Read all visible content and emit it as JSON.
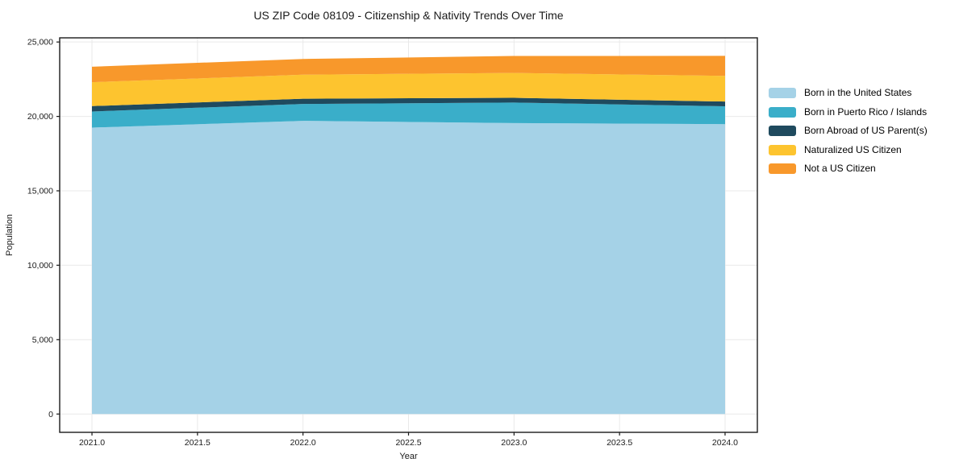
{
  "chart_data": {
    "type": "area",
    "stacked": true,
    "title": "US ZIP Code 08109 - Citizenship & Nativity Trends Over Time",
    "xlabel": "Year",
    "ylabel": "Population",
    "x": [
      2021,
      2022,
      2023,
      2024
    ],
    "series": [
      {
        "name": "Born in the United States",
        "color": "#a5d2e7",
        "values": [
          19250,
          19700,
          19550,
          19480
        ]
      },
      {
        "name": "Born in Puerto Rico / Islands",
        "color": "#3aaec9",
        "values": [
          1080,
          1140,
          1380,
          1200
        ]
      },
      {
        "name": "Born Abroad of US Parent(s)",
        "color": "#1f4a5e",
        "values": [
          360,
          350,
          320,
          320
        ]
      },
      {
        "name": "Naturalized US Citizen",
        "color": "#fdc42f",
        "values": [
          1610,
          1610,
          1670,
          1720
        ]
      },
      {
        "name": "Not a US Citizen",
        "color": "#f8982b",
        "values": [
          1040,
          1060,
          1140,
          1350
        ]
      }
    ],
    "xticks": [
      2021.0,
      2021.5,
      2022.0,
      2022.5,
      2023.0,
      2023.5,
      2024.0
    ],
    "xtick_labels": [
      "2021.0",
      "2021.5",
      "2022.0",
      "2022.5",
      "2023.0",
      "2023.5",
      "2024.0"
    ],
    "yticks": [
      0,
      5000,
      10000,
      15000,
      20000,
      25000
    ],
    "ytick_labels": [
      "0",
      "5,000",
      "10,000",
      "15,000",
      "20,000",
      "25,000"
    ],
    "xlim": [
      2020.847,
      2024.153
    ],
    "ylim": [
      -1230,
      25280
    ],
    "grid": true,
    "legend_position": "right"
  },
  "colors": {
    "grid": "#e9e9e9",
    "spine": "#1a1a1a",
    "tick": "#1a1a1a"
  }
}
